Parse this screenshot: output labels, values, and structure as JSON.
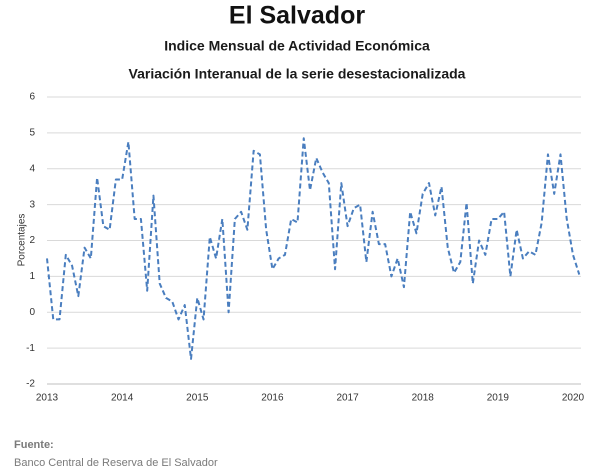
{
  "chart_data": {
    "type": "line",
    "title": "El Salvador",
    "subtitle": "Indice Mensual de  Actividad Económica",
    "subtitle2": "Variación Interanual de la serie desestacionalizada",
    "y_label": "Porcentajes",
    "source_label": "Fuente:",
    "source": "Banco Central de Reserva de El Salvador",
    "categories": [
      "2013",
      null,
      null,
      null,
      null,
      null,
      null,
      null,
      null,
      null,
      null,
      null,
      "2014",
      null,
      null,
      null,
      null,
      null,
      null,
      null,
      null,
      null,
      null,
      null,
      "2015",
      null,
      null,
      null,
      null,
      null,
      null,
      null,
      null,
      null,
      null,
      null,
      "2016",
      null,
      null,
      null,
      null,
      null,
      null,
      null,
      null,
      null,
      null,
      null,
      "2017",
      null,
      null,
      null,
      null,
      null,
      null,
      null,
      null,
      null,
      null,
      null,
      "2018",
      null,
      null,
      null,
      null,
      null,
      null,
      null,
      null,
      null,
      null,
      null,
      "2019",
      null,
      null,
      null,
      null,
      null,
      null,
      null,
      null,
      null,
      null,
      null,
      "2020",
      null
    ],
    "series": [
      {
        "color": "#4a7ebf",
        "values": [
          1.5,
          -0.2,
          -0.2,
          1.6,
          1.3,
          0.45,
          1.8,
          1.5,
          3.75,
          2.4,
          2.3,
          3.7,
          3.7,
          4.75,
          2.6,
          2.6,
          0.6,
          3.25,
          0.8,
          0.4,
          0.3,
          -0.2,
          0.2,
          -1.3,
          0.4,
          -0.2,
          2.1,
          1.5,
          2.6,
          0.0,
          2.6,
          2.8,
          2.3,
          4.5,
          4.4,
          2.3,
          1.2,
          1.5,
          1.6,
          2.6,
          2.5,
          4.85,
          3.4,
          4.3,
          3.9,
          3.6,
          1.2,
          3.6,
          2.4,
          2.9,
          3.0,
          1.4,
          2.8,
          1.9,
          1.9,
          1.0,
          1.5,
          0.7,
          2.8,
          2.2,
          3.3,
          3.6,
          2.7,
          3.5,
          1.8,
          1.1,
          1.4,
          3.05,
          0.8,
          2.0,
          1.6,
          2.6,
          2.6,
          2.8,
          1.0,
          2.3,
          1.5,
          1.7,
          1.6,
          2.5,
          4.4,
          3.3,
          4.4,
          2.6,
          1.6,
          1.05
        ]
      }
    ],
    "ylim": [
      -2,
      6
    ],
    "yticks": [
      -2,
      -1,
      0,
      1,
      2,
      3,
      4,
      5,
      6
    ],
    "grid": true,
    "dashed": true
  }
}
